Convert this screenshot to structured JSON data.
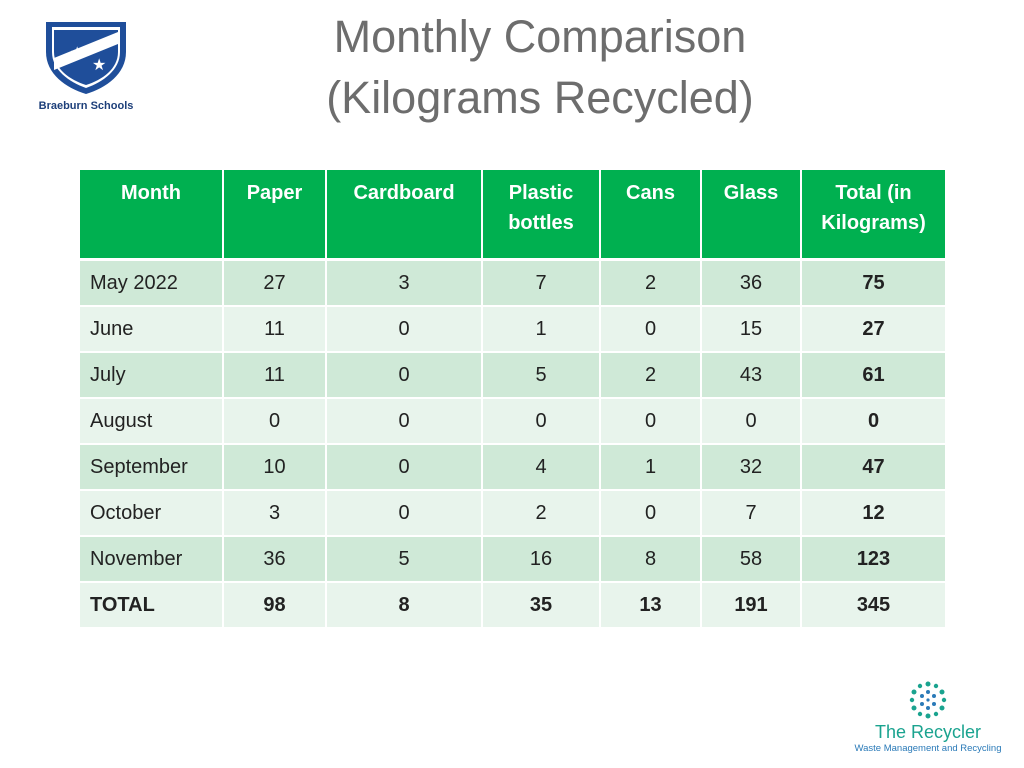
{
  "school": {
    "name": "Braeburn Schools"
  },
  "title": {
    "line1": "Monthly Comparison",
    "line2": "(Kilograms Recycled)"
  },
  "table": {
    "headers": [
      "Month",
      "Paper",
      "Cardboard",
      "Plastic bottles",
      "Cans",
      "Glass",
      "Total (in Kilograms)"
    ],
    "rows": [
      [
        "May 2022",
        "27",
        "3",
        "7",
        "2",
        "36",
        "75"
      ],
      [
        "June",
        "11",
        "0",
        "1",
        "0",
        "15",
        "27"
      ],
      [
        "July",
        "11",
        "0",
        "5",
        "2",
        "43",
        "61"
      ],
      [
        "August",
        "0",
        "0",
        "0",
        "0",
        "0",
        "0"
      ],
      [
        "September",
        "10",
        "0",
        "4",
        "1",
        "32",
        "47"
      ],
      [
        "October",
        "3",
        "0",
        "2",
        "0",
        "7",
        "12"
      ],
      [
        "November",
        "36",
        "5",
        "16",
        "8",
        "58",
        "123"
      ],
      [
        "TOTAL",
        "98",
        "8",
        "35",
        "13",
        "191",
        "345"
      ]
    ]
  },
  "recycler": {
    "name": "The Recycler",
    "tagline": "Waste Management and Recycling"
  },
  "colors": {
    "header_green": "#00b050",
    "row_dark": "#cfe9d7",
    "row_light": "#e8f4ec",
    "title_gray": "#6d6d6d"
  }
}
